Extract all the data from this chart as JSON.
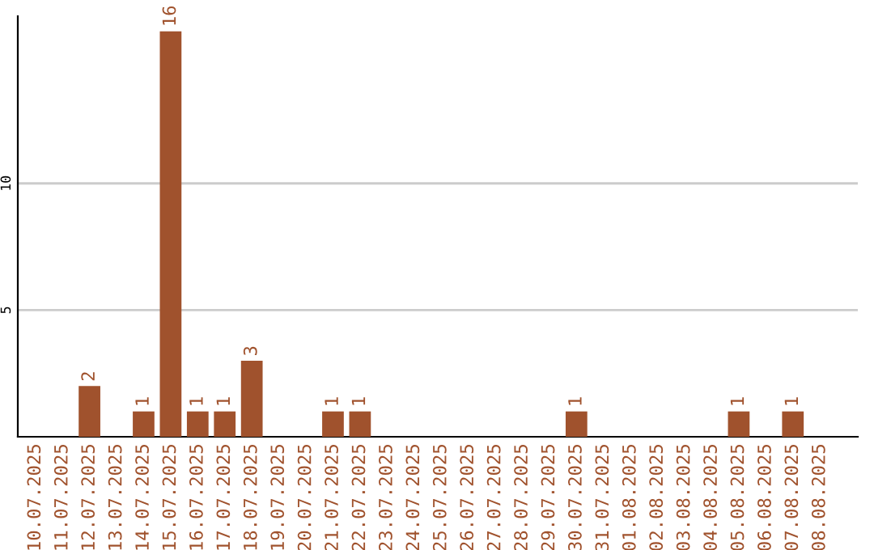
{
  "chart_data": {
    "type": "bar",
    "categories": [
      "10.07.2025",
      "11.07.2025",
      "12.07.2025",
      "13.07.2025",
      "14.07.2025",
      "15.07.2025",
      "16.07.2025",
      "17.07.2025",
      "18.07.2025",
      "19.07.2025",
      "20.07.2025",
      "21.07.2025",
      "22.07.2025",
      "23.07.2025",
      "24.07.2025",
      "25.07.2025",
      "26.07.2025",
      "27.07.2025",
      "28.07.2025",
      "29.07.2025",
      "30.07.2025",
      "31.07.2025",
      "01.08.2025",
      "02.08.2025",
      "03.08.2025",
      "04.08.2025",
      "05.08.2025",
      "06.08.2025",
      "07.08.2025",
      "08.08.2025"
    ],
    "values": [
      0,
      0,
      2,
      0,
      1,
      16,
      1,
      1,
      3,
      0,
      0,
      1,
      1,
      0,
      0,
      0,
      0,
      0,
      0,
      0,
      1,
      0,
      0,
      0,
      0,
      0,
      1,
      0,
      1,
      0
    ],
    "value_labels": [
      null,
      null,
      "2",
      null,
      "1",
      "16",
      "1",
      "1",
      "3",
      null,
      null,
      "1",
      "1",
      null,
      null,
      null,
      null,
      null,
      null,
      null,
      "1",
      null,
      null,
      null,
      null,
      null,
      "1",
      null,
      "1",
      null
    ],
    "color": "#a0522d",
    "ylim": [
      0,
      16.6
    ],
    "yticks": [
      5,
      10
    ],
    "grid": "y"
  }
}
